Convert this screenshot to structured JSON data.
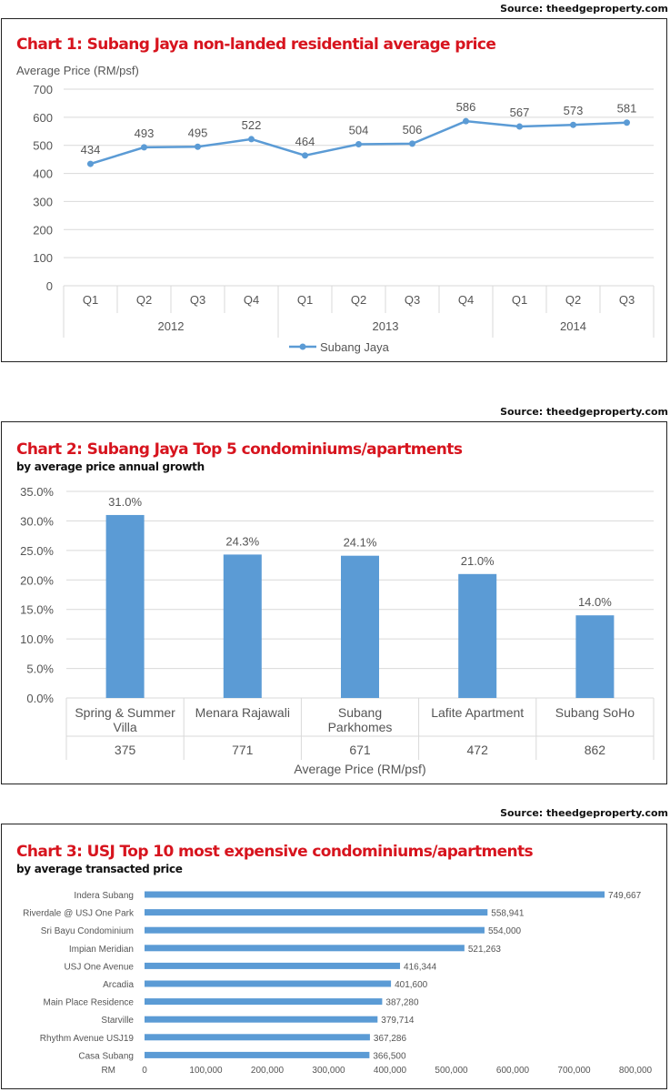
{
  "sources": [
    "Source: theedgeproperty.com",
    "Source: theedgeproperty.com",
    "Source: theedgeproperty.com"
  ],
  "colors": {
    "series": "#5b9bd5",
    "title": "#d7141e",
    "grid": "#d9d9d9"
  },
  "chart_data": [
    {
      "type": "line",
      "title": "Chart 1: Subang Jaya non-landed residential average price",
      "ylabel": "Average Price (RM/psf)",
      "ylim": [
        0,
        700
      ],
      "yticks": [
        "0",
        "100",
        "200",
        "300",
        "400",
        "500",
        "600",
        "700"
      ],
      "categories": [
        "Q1",
        "Q2",
        "Q3",
        "Q4",
        "Q1",
        "Q2",
        "Q3",
        "Q4",
        "Q1",
        "Q2",
        "Q3"
      ],
      "groups": [
        {
          "label": "2012",
          "count": 4
        },
        {
          "label": "2013",
          "count": 4
        },
        {
          "label": "2014",
          "count": 3
        }
      ],
      "series": [
        {
          "name": "Subang Jaya",
          "values": [
            434,
            493,
            495,
            522,
            464,
            504,
            506,
            586,
            567,
            573,
            581
          ]
        }
      ],
      "grid": true,
      "legend": "bottom"
    },
    {
      "type": "bar",
      "title": "Chart 2: Subang Jaya Top 5 condominiums/apartments",
      "subtitle": "by average price annual growth",
      "ylim": [
        0,
        35
      ],
      "yticks": [
        "0.0%",
        "5.0%",
        "10.0%",
        "15.0%",
        "20.0%",
        "25.0%",
        "30.0%",
        "35.0%"
      ],
      "categories": [
        [
          "Spring & Summer",
          "Villa"
        ],
        [
          "Menara Rajawali"
        ],
        [
          "Subang",
          "Parkhomes"
        ],
        [
          "Lafite Apartment"
        ],
        [
          "Subang SoHo"
        ]
      ],
      "values": [
        31.0,
        24.3,
        24.1,
        21.0,
        14.0
      ],
      "value_labels": [
        "31.0%",
        "24.3%",
        "24.1%",
        "21.0%",
        "14.0%"
      ],
      "secondary_row": [
        "375",
        "771",
        "671",
        "472",
        "862"
      ],
      "xlabel": "Average Price (RM/psf)",
      "grid": true
    },
    {
      "type": "bar",
      "orientation": "horizontal",
      "title": "Chart 3: USJ Top 10 most expensive condominiums/apartments",
      "subtitle": "by average transacted price",
      "categories": [
        "Indera Subang",
        "Riverdale @ USJ One Park",
        "Sri Bayu Condominium",
        "Impian Meridian",
        "USJ One Avenue",
        "Arcadia",
        "Main Place Residence",
        "Starville",
        "Rhythm Avenue USJ19",
        "Casa Subang"
      ],
      "values": [
        749667,
        558941,
        554000,
        521263,
        416344,
        401600,
        387280,
        379714,
        367286,
        366500
      ],
      "value_labels": [
        "749,667",
        "558,941",
        "554,000",
        "521,263",
        "416,344",
        "401,600",
        "387,280",
        "379,714",
        "367,286",
        "366,500"
      ],
      "xlim": [
        0,
        800000
      ],
      "xticks": [
        "0",
        "100,000",
        "200,000",
        "300,000",
        "400,000",
        "500,000",
        "600,000",
        "700,000",
        "800,000"
      ],
      "xunit": "RM",
      "grid": false
    }
  ]
}
